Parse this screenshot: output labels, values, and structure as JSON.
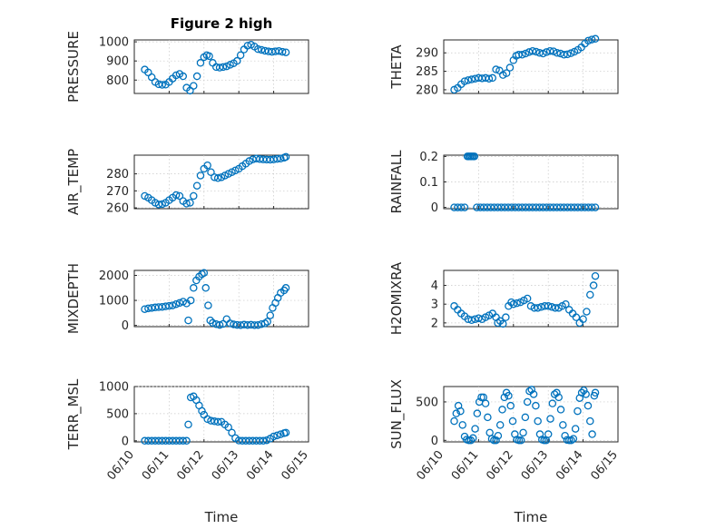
{
  "title": "Figure 2 high",
  "marker_color": "#0072BD",
  "chart_data": [
    {
      "type": "scatter",
      "ylabel": "PRESSURE",
      "ylim": [
        730,
        1010
      ],
      "yticks": [
        "800",
        "900",
        "1000"
      ],
      "grid": true,
      "x": [
        0.3,
        0.4,
        0.5,
        0.6,
        0.7,
        0.8,
        0.9,
        1.0,
        1.1,
        1.2,
        1.3,
        1.4,
        1.5,
        1.6,
        1.7,
        1.8,
        1.9,
        2.0,
        2.08,
        2.15,
        2.25,
        2.35,
        2.45,
        2.55,
        2.65,
        2.75,
        2.85,
        2.95,
        3.05,
        3.15,
        3.25,
        3.35,
        3.45,
        3.55,
        3.65,
        3.75,
        3.85,
        3.95,
        4.05,
        4.15,
        4.25,
        4.35
      ],
      "y": [
        855,
        840,
        815,
        790,
        778,
        775,
        776,
        790,
        808,
        825,
        832,
        820,
        760,
        745,
        770,
        820,
        890,
        920,
        930,
        925,
        890,
        868,
        865,
        868,
        872,
        880,
        888,
        900,
        930,
        960,
        980,
        985,
        975,
        962,
        958,
        953,
        950,
        948,
        950,
        952,
        948,
        945
      ]
    },
    {
      "type": "scatter",
      "ylabel": "THETA",
      "ylim": [
        279,
        293.5
      ],
      "yticks": [
        "280",
        "285",
        "290"
      ],
      "grid": true,
      "x": [
        0.3,
        0.4,
        0.5,
        0.6,
        0.7,
        0.8,
        0.9,
        1.0,
        1.1,
        1.2,
        1.3,
        1.4,
        1.5,
        1.6,
        1.7,
        1.8,
        1.9,
        2.0,
        2.08,
        2.15,
        2.25,
        2.35,
        2.45,
        2.55,
        2.65,
        2.75,
        2.85,
        2.95,
        3.05,
        3.15,
        3.25,
        3.35,
        3.45,
        3.55,
        3.65,
        3.75,
        3.85,
        3.95,
        4.05,
        4.15,
        4.25,
        4.35
      ],
      "y": [
        280,
        280.5,
        281.5,
        282.3,
        282.6,
        282.8,
        283,
        283.2,
        283.1,
        283.2,
        283,
        283.2,
        285.5,
        285.2,
        284,
        284.5,
        286,
        288,
        289.2,
        289.5,
        289.5,
        289.8,
        290.2,
        290.5,
        290.3,
        290.0,
        289.8,
        290.2,
        290.5,
        290.4,
        290.0,
        289.8,
        289.5,
        289.6,
        289.9,
        290.3,
        290.8,
        291.5,
        292.5,
        293.3,
        293.6,
        293.8
      ]
    },
    {
      "type": "scatter",
      "ylabel": "AIR_TEMP",
      "ylim": [
        259.5,
        291
      ],
      "yticks": [
        "260",
        "270",
        "280"
      ],
      "grid": true,
      "x": [
        0.3,
        0.4,
        0.5,
        0.6,
        0.7,
        0.8,
        0.9,
        1.0,
        1.1,
        1.2,
        1.3,
        1.4,
        1.5,
        1.6,
        1.7,
        1.8,
        1.9,
        2.0,
        2.1,
        2.2,
        2.3,
        2.4,
        2.5,
        2.6,
        2.7,
        2.8,
        2.9,
        3.0,
        3.1,
        3.2,
        3.3,
        3.4,
        3.5,
        3.6,
        3.7,
        3.8,
        3.9,
        4.0,
        4.1,
        4.2,
        4.3,
        4.35
      ],
      "y": [
        267,
        266,
        264.5,
        263,
        262,
        262.2,
        263,
        264.5,
        266,
        267.5,
        267,
        264,
        262.5,
        263,
        267,
        273,
        279,
        283,
        285,
        281,
        278,
        277.5,
        278,
        279,
        280,
        281,
        282,
        283,
        284.5,
        286,
        287.5,
        288.5,
        289,
        288.7,
        288.5,
        288.4,
        288.3,
        288.5,
        288.8,
        289,
        289.5,
        290
      ]
    },
    {
      "type": "scatter",
      "ylabel": "RAINFALL",
      "ylim": [
        -0.005,
        0.205
      ],
      "yticks": [
        "0",
        "0.1",
        "0.2"
      ],
      "grid": true,
      "x": [
        0.3,
        0.4,
        0.5,
        0.6,
        0.68,
        0.72,
        0.76,
        0.8,
        0.84,
        0.88,
        0.95,
        1.05,
        1.15,
        1.25,
        1.35,
        1.45,
        1.55,
        1.65,
        1.75,
        1.85,
        1.95,
        2.05,
        2.15,
        2.25,
        2.35,
        2.45,
        2.55,
        2.65,
        2.75,
        2.85,
        2.95,
        3.05,
        3.15,
        3.25,
        3.35,
        3.45,
        3.55,
        3.65,
        3.75,
        3.85,
        3.95,
        4.05,
        4.15,
        4.25,
        4.35
      ],
      "y": [
        0,
        0,
        0,
        0,
        0.2,
        0.2,
        0.2,
        0.2,
        0.2,
        0.2,
        0,
        0,
        0,
        0,
        0,
        0,
        0,
        0,
        0,
        0,
        0,
        0,
        0,
        0,
        0,
        0,
        0,
        0,
        0,
        0,
        0,
        0,
        0,
        0,
        0,
        0,
        0,
        0,
        0,
        0,
        0,
        0,
        0,
        0,
        0
      ]
    },
    {
      "type": "scatter",
      "ylabel": "MIXDEPTH",
      "ylim": [
        -50,
        2200
      ],
      "yticks": [
        "0",
        "1000",
        "2000"
      ],
      "grid": true,
      "x": [
        0.3,
        0.4,
        0.5,
        0.6,
        0.7,
        0.8,
        0.9,
        1.0,
        1.1,
        1.2,
        1.3,
        1.4,
        1.5,
        1.55,
        1.62,
        1.7,
        1.78,
        1.86,
        1.94,
        2.0,
        2.05,
        2.12,
        2.18,
        2.25,
        2.35,
        2.45,
        2.55,
        2.65,
        2.75,
        2.85,
        2.95,
        3.05,
        3.15,
        3.25,
        3.35,
        3.45,
        3.55,
        3.65,
        3.75,
        3.82,
        3.9,
        3.97,
        4.05,
        4.12,
        4.2,
        4.3,
        4.35
      ],
      "y": [
        650,
        680,
        700,
        720,
        730,
        740,
        760,
        780,
        800,
        850,
        900,
        950,
        880,
        200,
        1000,
        1500,
        1800,
        1950,
        2050,
        2100,
        1500,
        800,
        200,
        100,
        50,
        20,
        60,
        250,
        80,
        40,
        20,
        10,
        30,
        15,
        25,
        10,
        15,
        50,
        80,
        150,
        400,
        700,
        900,
        1100,
        1300,
        1400,
        1500
      ]
    },
    {
      "type": "scatter",
      "ylabel": "H2OMIXRA",
      "ylim": [
        1.8,
        4.8
      ],
      "yticks": [
        "2",
        "3",
        "4"
      ],
      "grid": true,
      "x": [
        0.3,
        0.4,
        0.5,
        0.6,
        0.7,
        0.8,
        0.9,
        1.0,
        1.1,
        1.2,
        1.3,
        1.4,
        1.5,
        1.55,
        1.62,
        1.7,
        1.78,
        1.86,
        1.94,
        2.0,
        2.1,
        2.2,
        2.3,
        2.4,
        2.5,
        2.6,
        2.7,
        2.8,
        2.9,
        3.0,
        3.1,
        3.2,
        3.3,
        3.4,
        3.5,
        3.6,
        3.7,
        3.8,
        3.9,
        4.0,
        4.1,
        4.2,
        4.3,
        4.35
      ],
      "y": [
        2.9,
        2.7,
        2.5,
        2.35,
        2.2,
        2.15,
        2.2,
        2.25,
        2.2,
        2.3,
        2.4,
        2.5,
        2.3,
        2.0,
        2.1,
        1.95,
        2.3,
        2.9,
        3.1,
        3.0,
        3.05,
        3.1,
        3.2,
        3.3,
        2.9,
        2.8,
        2.8,
        2.85,
        2.9,
        2.9,
        2.85,
        2.8,
        2.8,
        2.9,
        3.0,
        2.7,
        2.5,
        2.3,
        2.0,
        2.2,
        2.6,
        3.5,
        4.0,
        4.5
      ]
    },
    {
      "type": "scatter",
      "ylabel": "TERR_MSL",
      "ylim": [
        -20,
        1000
      ],
      "yticks": [
        "0",
        "500",
        "1000"
      ],
      "grid": true,
      "x": [
        0.3,
        0.4,
        0.5,
        0.6,
        0.7,
        0.8,
        0.9,
        1.0,
        1.1,
        1.2,
        1.3,
        1.4,
        1.5,
        1.55,
        1.62,
        1.7,
        1.78,
        1.86,
        1.94,
        2.0,
        2.1,
        2.2,
        2.3,
        2.4,
        2.5,
        2.6,
        2.7,
        2.8,
        2.9,
        3.0,
        3.1,
        3.2,
        3.3,
        3.4,
        3.5,
        3.6,
        3.7,
        3.8,
        3.9,
        4.0,
        4.1,
        4.2,
        4.3,
        4.35
      ],
      "y": [
        0,
        0,
        0,
        0,
        0,
        0,
        0,
        0,
        0,
        0,
        0,
        0,
        0,
        300,
        800,
        820,
        750,
        650,
        550,
        480,
        400,
        370,
        360,
        350,
        350,
        300,
        250,
        150,
        50,
        5,
        0,
        0,
        0,
        0,
        0,
        0,
        0,
        10,
        40,
        80,
        100,
        120,
        140,
        150
      ]
    },
    {
      "type": "scatter",
      "ylabel": "SUN_FLUX",
      "ylim": [
        -20,
        700
      ],
      "yticks": [
        "0",
        "500"
      ],
      "grid": true,
      "x": [
        0.3,
        0.36,
        0.42,
        0.48,
        0.54,
        0.6,
        0.66,
        0.72,
        0.78,
        0.84,
        0.9,
        0.96,
        1.02,
        1.08,
        1.14,
        1.2,
        1.26,
        1.32,
        1.38,
        1.44,
        1.5,
        1.56,
        1.62,
        1.68,
        1.74,
        1.8,
        1.86,
        1.92,
        1.98,
        2.04,
        2.1,
        2.16,
        2.22,
        2.28,
        2.34,
        2.4,
        2.46,
        2.52,
        2.58,
        2.64,
        2.7,
        2.76,
        2.82,
        2.88,
        2.94,
        3.0,
        3.06,
        3.12,
        3.18,
        3.24,
        3.3,
        3.36,
        3.42,
        3.48,
        3.54,
        3.6,
        3.66,
        3.72,
        3.78,
        3.84,
        3.9,
        3.96,
        4.02,
        4.08,
        4.14,
        4.2,
        4.26,
        4.32,
        4.35
      ],
      "y": [
        250,
        350,
        450,
        380,
        200,
        50,
        10,
        0,
        0,
        30,
        150,
        350,
        500,
        560,
        560,
        480,
        300,
        100,
        20,
        0,
        0,
        60,
        200,
        400,
        560,
        620,
        580,
        450,
        250,
        80,
        10,
        0,
        0,
        100,
        300,
        500,
        640,
        660,
        600,
        450,
        250,
        80,
        10,
        0,
        0,
        80,
        280,
        480,
        600,
        620,
        560,
        400,
        200,
        60,
        5,
        0,
        0,
        20,
        150,
        380,
        550,
        620,
        650,
        600,
        450,
        250,
        80,
        580,
        620
      ]
    }
  ],
  "x_axis": {
    "ticks": [
      "06/10",
      "06/11",
      "06/12",
      "06/13",
      "06/14",
      "06/15"
    ],
    "label": "Time",
    "range": [
      0,
      5
    ]
  }
}
